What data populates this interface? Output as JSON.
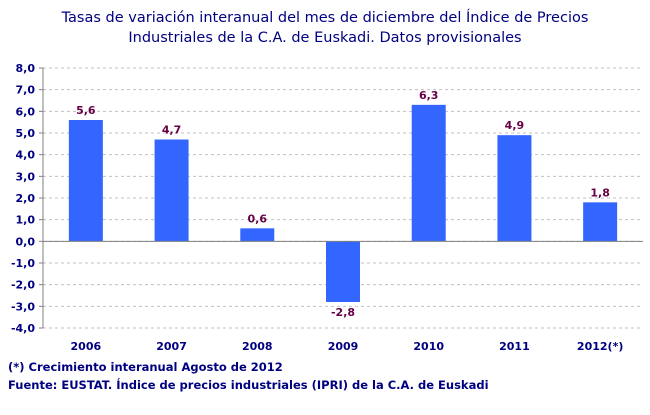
{
  "chart_data": {
    "type": "bar",
    "title": [
      "Tasas de variación interanual del mes de diciembre del Índice de Precios",
      "Industriales de la C.A. de Euskadi. Datos provisionales"
    ],
    "categories": [
      "2006",
      "2007",
      "2008",
      "2009",
      "2010",
      "2011",
      "2012(*)"
    ],
    "values": [
      5.6,
      4.7,
      0.6,
      -2.8,
      6.3,
      4.9,
      1.8
    ],
    "data_labels": [
      "5,6",
      "4,7",
      "0,6",
      "-2,8",
      "6,3",
      "4,9",
      "1,8"
    ],
    "ylim": [
      -4,
      8
    ],
    "yticks": [
      "8,0",
      "7,0",
      "6,0",
      "5,0",
      "4,0",
      "3,0",
      "2,0",
      "1,0",
      "0,0",
      "-1,0",
      "-2,0",
      "-3,0",
      "-4,0"
    ],
    "ytick_values": [
      8,
      7,
      6,
      5,
      4,
      3,
      2,
      1,
      0,
      -1,
      -2,
      -3,
      -4
    ],
    "grid": true,
    "xlabel": "",
    "ylabel": "",
    "colors": {
      "bar": "#3366ff",
      "text": "#000080",
      "data_label": "#660044",
      "grid": "#c0c0c0"
    }
  },
  "footnotes": {
    "note": "(*) Crecimiento interanual Agosto de 2012",
    "source": "Fuente: EUSTAT. Índice de precios industriales (IPRI) de la C.A. de Euskadi"
  }
}
